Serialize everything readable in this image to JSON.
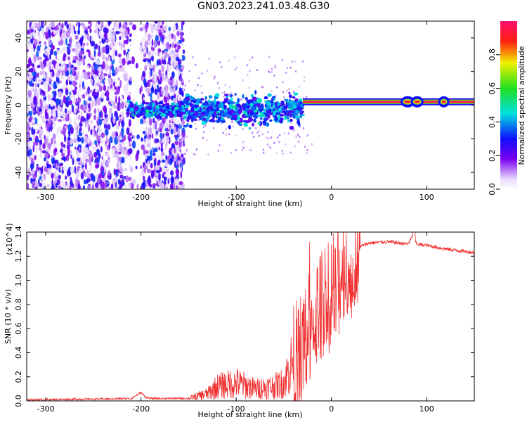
{
  "title": "GN03.2023.241.03.48.G30",
  "colorbar": {
    "label": "Normalized spectral amplitude",
    "ticks": [
      "0.0",
      "0.2",
      "0.4",
      "0.6",
      "0.8"
    ],
    "tick_values": [
      0.0,
      0.2,
      0.4,
      0.6,
      0.8
    ],
    "range": [
      0.0,
      1.0
    ]
  },
  "chart_data": [
    {
      "type": "heatmap",
      "xlabel": "Height of straight line (km)",
      "ylabel": "Frequency (Hz)",
      "xlim": [
        -320,
        150
      ],
      "ylim": [
        -50,
        50
      ],
      "xticks": [
        -300,
        -200,
        -100,
        0,
        100
      ],
      "yticks": [
        -40,
        -20,
        0,
        20,
        40
      ],
      "xtick_labels": [
        "-300",
        "-200",
        "-100",
        "0",
        "100"
      ],
      "ytick_labels": [
        "-40",
        "-20",
        "0",
        "20",
        "40"
      ],
      "regions": [
        {
          "x": [
            -320,
            -155
          ],
          "freq_center": 0,
          "freq_spread": 50,
          "amplitude": 0.15,
          "description": "noise"
        },
        {
          "x": [
            -155,
            -30
          ],
          "freq_center": -3,
          "freq_spread": 8,
          "amplitude": 0.35
        },
        {
          "x": [
            -30,
            150
          ],
          "freq_center": 2,
          "freq_spread": 2,
          "amplitude": 0.95
        }
      ]
    },
    {
      "type": "line",
      "xlabel": "Height of straight line (km)",
      "ylabel": "SNR (10 * v/v)",
      "y_multiplier": "(x10^4)",
      "xlim": [
        -320,
        150
      ],
      "ylim": [
        0,
        1.4
      ],
      "xticks": [
        -300,
        -200,
        -100,
        0,
        100
      ],
      "yticks": [
        0.0,
        0.2,
        0.4,
        0.6,
        0.8,
        1.0,
        1.2,
        1.4
      ],
      "xtick_labels": [
        "-300",
        "-200",
        "-100",
        "0",
        "100"
      ],
      "ytick_labels": [
        "0.0",
        "0.2",
        "0.4",
        "0.6",
        "0.8",
        "1.0",
        "1.2",
        "1.4"
      ],
      "color": "#f03030",
      "series": [
        {
          "x": [
            -320,
            -250,
            -210,
            -200,
            -195,
            -190,
            -150,
            -130,
            -120,
            -100,
            -80,
            -60,
            -50,
            -40,
            -30,
            -20,
            -10,
            0,
            10,
            20,
            30,
            40,
            60,
            80,
            85,
            90,
            100,
            120,
            150
          ],
          "y": [
            0.01,
            0.015,
            0.02,
            0.07,
            0.03,
            0.02,
            0.02,
            0.06,
            0.12,
            0.15,
            0.1,
            0.12,
            0.15,
            0.35,
            0.5,
            0.7,
            0.85,
            1.0,
            1.1,
            1.22,
            1.28,
            1.31,
            1.32,
            1.3,
            1.36,
            1.3,
            1.29,
            1.26,
            1.23
          ]
        }
      ]
    }
  ]
}
